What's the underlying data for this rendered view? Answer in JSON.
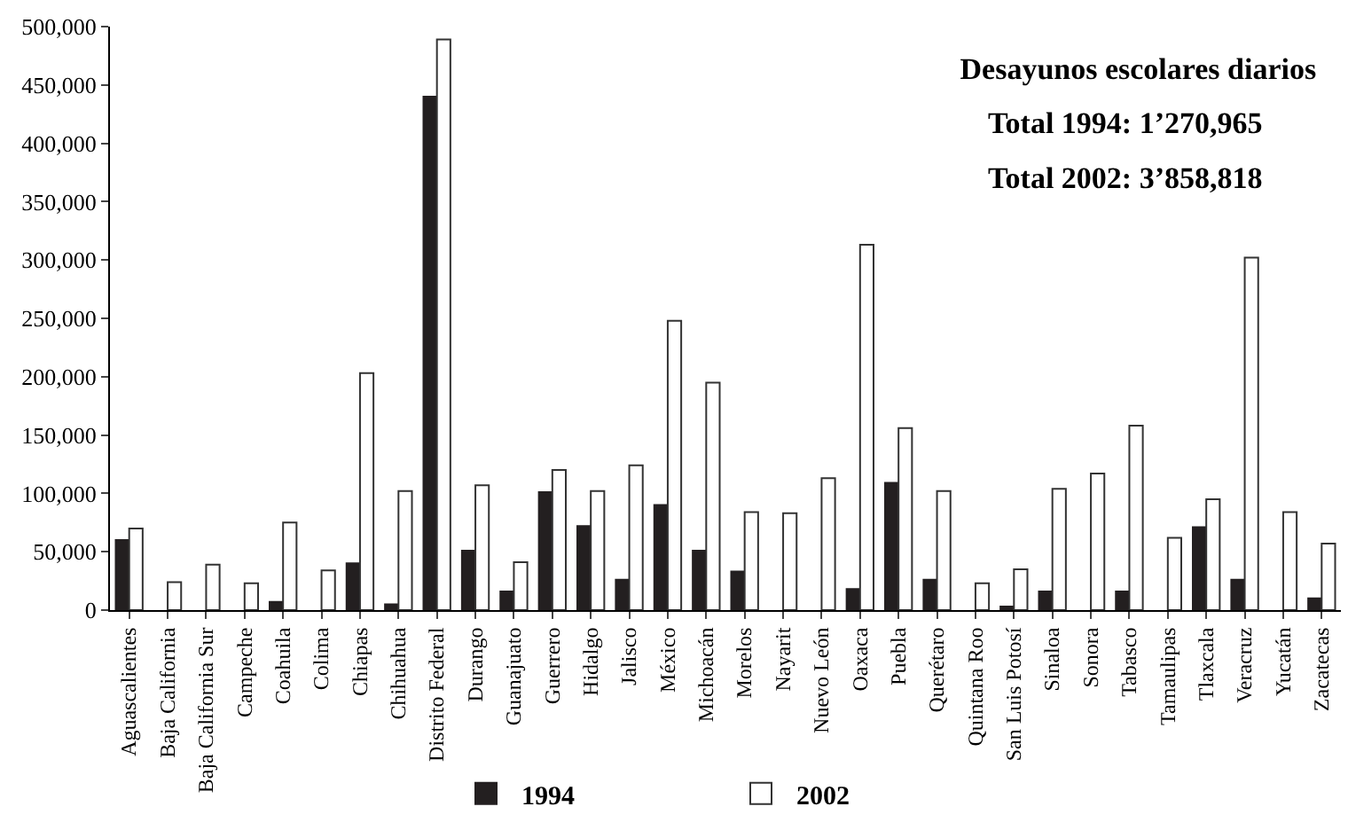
{
  "chart_data": {
    "type": "bar",
    "title": "Desayunos escolares diarios",
    "annotations": [
      "Total 1994: 1’270,965",
      "Total 2002: 3’858,818"
    ],
    "categories": [
      "Aguascalientes",
      "Baja California",
      "Baja California Sur",
      "Campeche",
      "Coahuila",
      "Colima",
      "Chiapas",
      "Chihuahua",
      "Distrito Federal",
      "Durango",
      "Guanajuato",
      "Guerrero",
      "Hidalgo",
      "Jalisco",
      "México",
      "Michoacán",
      "Morelos",
      "Nayarit",
      "Nuevo León",
      "Oaxaca",
      "Puebla",
      "Querétaro",
      "Quintana Roo",
      "San Luis Potosí",
      "Sinaloa",
      "Sonora",
      "Tabasco",
      "Tamaulipas",
      "Tlaxcala",
      "Veracruz",
      "Yucatán",
      "Zacatecas"
    ],
    "series": [
      {
        "name": "1994",
        "color": "#231f20",
        "values": [
          60000,
          0,
          0,
          0,
          7000,
          0,
          40000,
          5000,
          440000,
          51000,
          16000,
          101000,
          72000,
          26000,
          90000,
          51000,
          33000,
          0,
          0,
          18000,
          109000,
          26000,
          0,
          3000,
          16000,
          0,
          16000,
          0,
          71000,
          26000,
          0,
          10000
        ]
      },
      {
        "name": "2002",
        "color": "#ffffff",
        "values": [
          70000,
          24000,
          39000,
          23000,
          75000,
          34000,
          203000,
          102000,
          489000,
          107000,
          41000,
          120000,
          102000,
          124000,
          248000,
          195000,
          84000,
          83000,
          113000,
          313000,
          156000,
          102000,
          23000,
          35000,
          104000,
          117000,
          158000,
          62000,
          95000,
          302000,
          84000,
          57000
        ]
      }
    ],
    "ylim": [
      0,
      500000
    ],
    "yticks": [
      {
        "value": 0,
        "label": "0"
      },
      {
        "value": 50000,
        "label": "50,000"
      },
      {
        "value": 100000,
        "label": "100,000"
      },
      {
        "value": 150000,
        "label": "150,000"
      },
      {
        "value": 200000,
        "label": "200,000"
      },
      {
        "value": 250000,
        "label": "250,000"
      },
      {
        "value": 300000,
        "label": "300,000"
      },
      {
        "value": 350000,
        "label": "350,000"
      },
      {
        "value": 400000,
        "label": "400,000"
      },
      {
        "value": 450000,
        "label": "450,000"
      },
      {
        "value": 500000,
        "label": "500,000"
      }
    ],
    "legend": "bottom"
  }
}
